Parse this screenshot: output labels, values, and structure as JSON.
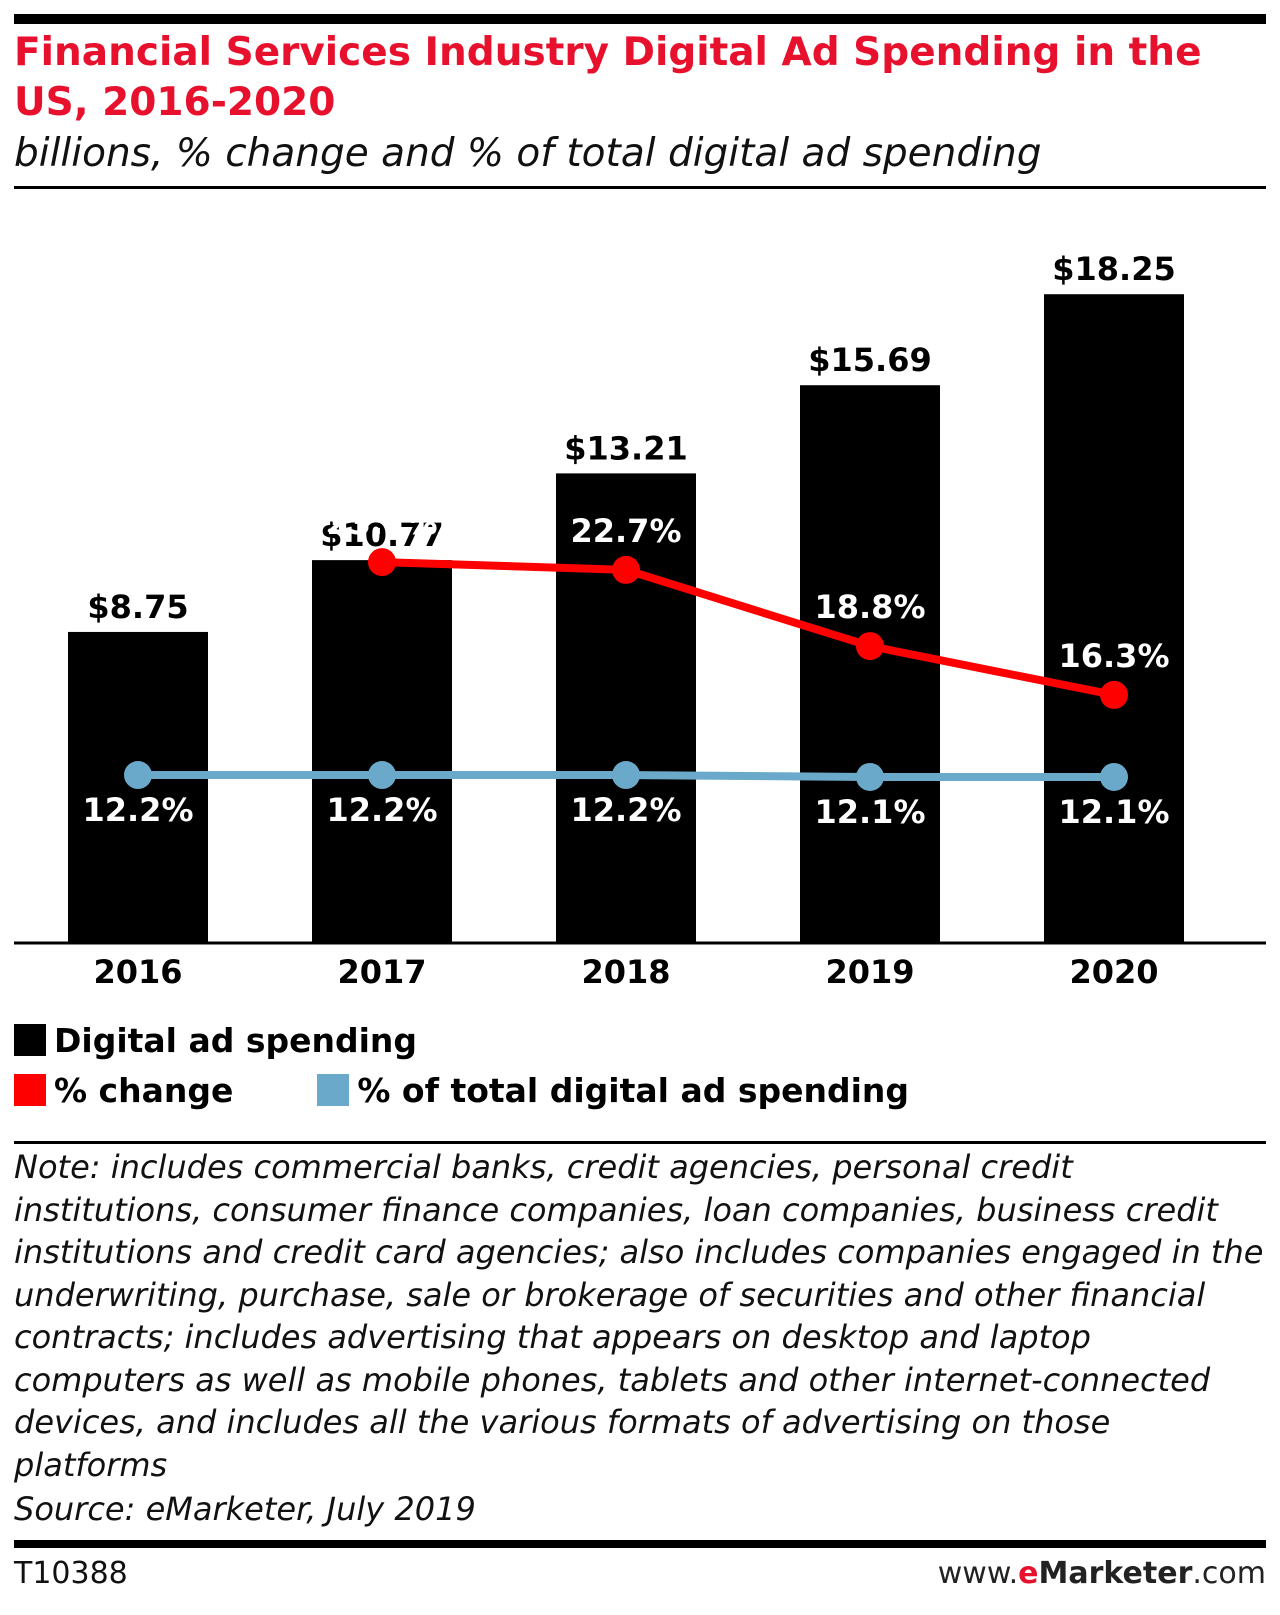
{
  "header": {
    "title": "Financial Services Industry Digital Ad Spending in the US, 2016-2020",
    "subtitle": "billions, % change and % of total digital ad spending"
  },
  "chart_data": {
    "type": "bar",
    "title": "Financial Services Industry Digital Ad Spending in the US, 2016-2020",
    "subtitle": "billions, % change and % of total digital ad spending",
    "categories": [
      "2016",
      "2017",
      "2018",
      "2019",
      "2020"
    ],
    "series": [
      {
        "name": "Digital ad spending",
        "type": "bar",
        "color": "#000000",
        "values": [
          8.75,
          10.77,
          13.21,
          15.69,
          18.25
        ],
        "labels": [
          "$8.75",
          "$10.77",
          "$13.21",
          "$15.69",
          "$18.25"
        ]
      },
      {
        "name": "% change",
        "type": "line",
        "color": "#ff0000",
        "values": [
          null,
          23.1,
          22.7,
          18.8,
          16.3
        ],
        "labels": [
          "",
          "23.1%",
          "22.7%",
          "18.8%",
          "16.3%"
        ]
      },
      {
        "name": "% of total digital ad spending",
        "type": "line",
        "color": "#6aa9c9",
        "values": [
          12.2,
          12.2,
          12.2,
          12.1,
          12.1
        ],
        "labels": [
          "12.2%",
          "12.2%",
          "12.2%",
          "12.1%",
          "12.1%"
        ]
      }
    ],
    "bar_axis_range": [
      0,
      20
    ],
    "line_axis_range": [
      3.6,
      40
    ],
    "grid": false,
    "legend_position": "bottom-left"
  },
  "legend": {
    "items": [
      {
        "label": "Digital ad spending",
        "color": "#000000"
      },
      {
        "label": "% change",
        "color": "#ff0000"
      },
      {
        "label": "% of total digital ad spending",
        "color": "#6aa9c9"
      }
    ]
  },
  "footer": {
    "note": "Note: includes commercial banks, credit agencies, personal credit institutions, consumer finance companies, loan companies, business credit institutions and credit card agencies; also includes companies engaged in the underwriting, purchase, sale or brokerage of securities and other financial contracts; includes advertising that appears on desktop and laptop computers as well as mobile phones, tablets and other internet-connected devices, and includes all the various formats of advertising on those platforms",
    "source": "Source: eMarketer, July 2019",
    "chart_id": "T10388",
    "brand": {
      "prefix": "www.",
      "e": "e",
      "name": "Marketer",
      "suffix": ".com"
    }
  }
}
